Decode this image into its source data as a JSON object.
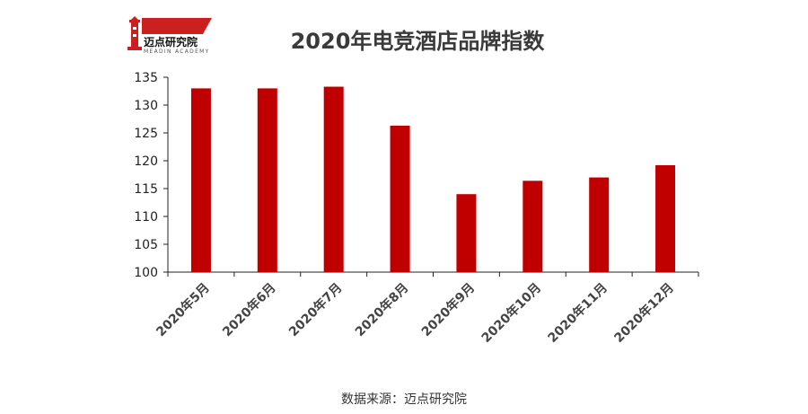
{
  "logo": {
    "name": "迈点研究院",
    "subtitle": "MEADIN ACADEMY",
    "accent": "#cc1f1f"
  },
  "footer": {
    "source": "数据来源：迈点研究院"
  },
  "chart_data": {
    "type": "bar",
    "title": "2020年电竞酒店品牌指数",
    "categories": [
      "2020年5月",
      "2020年6月",
      "2020年7月",
      "2020年8月",
      "2020年9月",
      "2020年10月",
      "2020年11月",
      "2020年12月"
    ],
    "values": [
      133.0,
      133.0,
      133.3,
      126.3,
      114.0,
      116.4,
      117.0,
      119.2
    ],
    "ylim": [
      100,
      135
    ],
    "yticks": [
      100,
      105,
      110,
      115,
      120,
      125,
      130,
      135
    ],
    "bar_color": "#c00000",
    "grid": false,
    "legend": "none"
  }
}
